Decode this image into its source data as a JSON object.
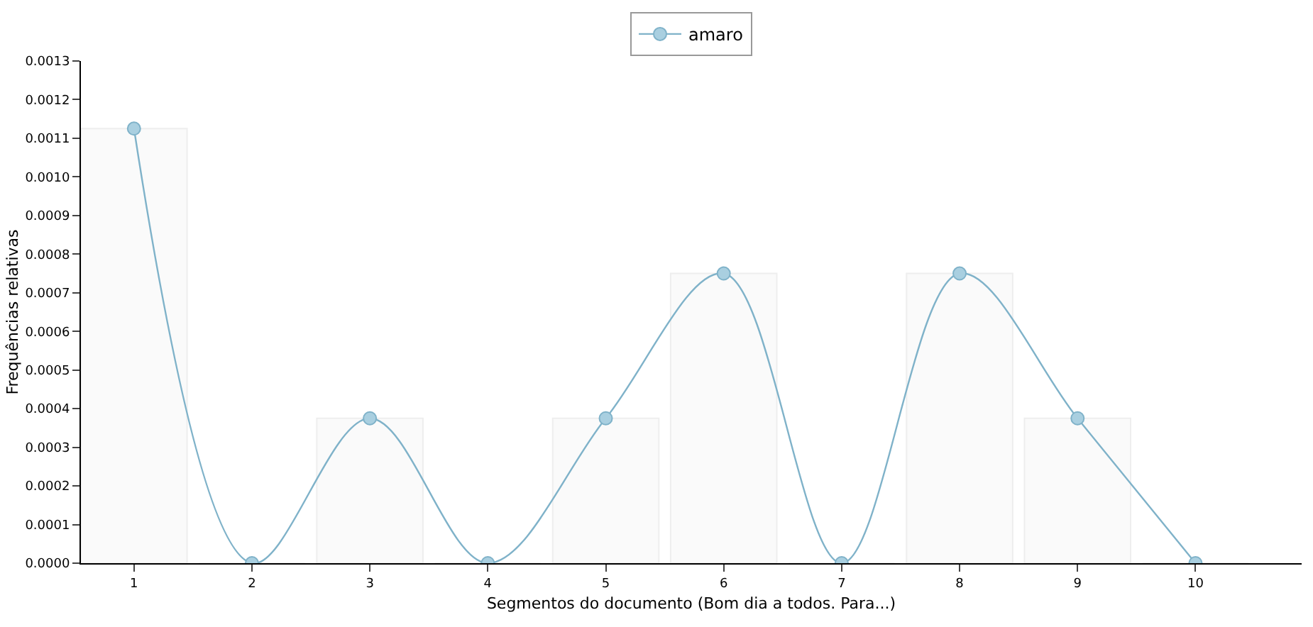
{
  "chart_data": {
    "type": "line",
    "xlabel": "Segmentos do documento (Bom dia a todos. Para...)",
    "ylabel": "Frequências relativas",
    "categories": [
      "1",
      "2",
      "3",
      "4",
      "5",
      "6",
      "7",
      "8",
      "9",
      "10"
    ],
    "series": [
      {
        "type": "bar",
        "color": "#fafafa",
        "values": [
          0.001125,
          0,
          0.000375,
          0,
          0.000375,
          0.00075,
          0,
          0.00075,
          0.000375,
          0
        ]
      },
      {
        "name": "amaro",
        "color": "#7fb2c9",
        "marker": "circle",
        "values": [
          0.001125,
          0,
          0.000375,
          0,
          0.000375,
          0.00075,
          0,
          0.00075,
          0.000375,
          0
        ]
      }
    ],
    "ylim": [
      0,
      0.0013
    ],
    "yticks": [
      {
        "value": 0,
        "label": "0.0000"
      },
      {
        "value": 0.0001,
        "label": "0.0001"
      },
      {
        "value": 0.0002,
        "label": "0.0002"
      },
      {
        "value": 0.0003,
        "label": "0.0003"
      },
      {
        "value": 0.0004,
        "label": "0.0004"
      },
      {
        "value": 0.0005,
        "label": "0.0005"
      },
      {
        "value": 0.0006,
        "label": "0.0006"
      },
      {
        "value": 0.0007,
        "label": "0.0007"
      },
      {
        "value": 0.0008,
        "label": "0.0008"
      },
      {
        "value": 0.0009,
        "label": "0.0009"
      },
      {
        "value": 0.001,
        "label": "0.0010"
      },
      {
        "value": 0.0011,
        "label": "0.0011"
      },
      {
        "value": 0.0012,
        "label": "0.0012"
      },
      {
        "value": 0.0013,
        "label": "0.0013"
      }
    ],
    "legend": "top"
  }
}
